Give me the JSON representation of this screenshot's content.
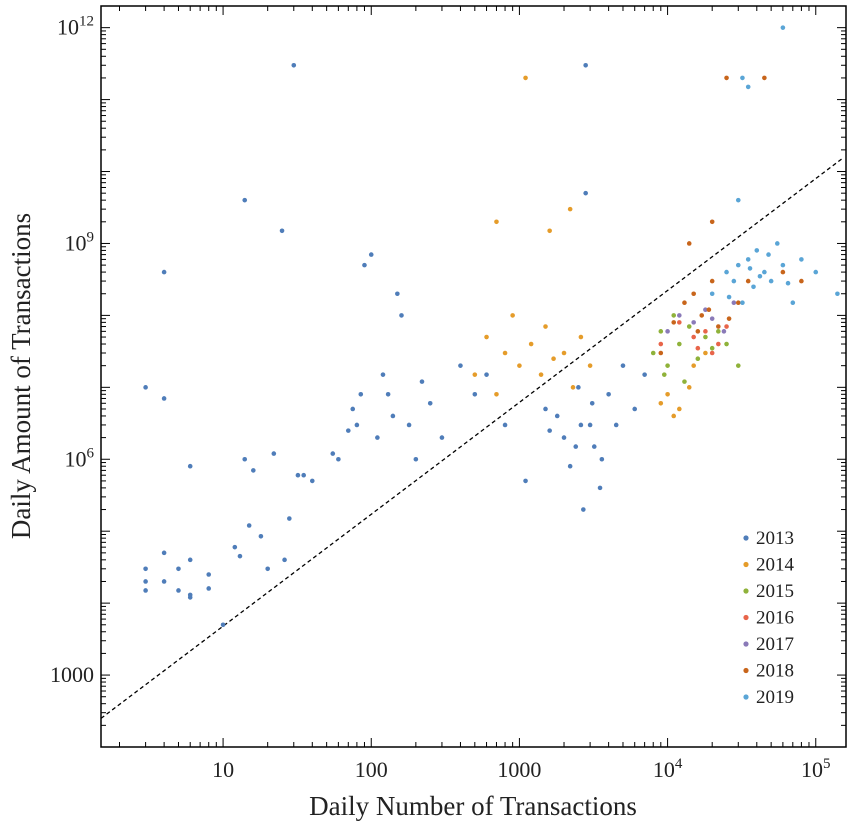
{
  "chart_data": {
    "type": "scatter",
    "xlabel": "Daily Number of Transactions",
    "ylabel": "Daily Amount of Transactions",
    "x_scale": "log",
    "y_scale": "log",
    "xlim": [
      1.5,
      160000
    ],
    "ylim": [
      100,
      2000000000000
    ],
    "x_ticks": [
      {
        "value": 10,
        "label": "10"
      },
      {
        "value": 100,
        "label": "100"
      },
      {
        "value": 1000,
        "label": "1000"
      },
      {
        "value": 10000,
        "label": "10",
        "sup": "4"
      },
      {
        "value": 100000,
        "label": "10",
        "sup": "5"
      }
    ],
    "y_ticks": [
      {
        "value": 1000,
        "label": "1000"
      },
      {
        "value": 1000000,
        "label": "10",
        "sup": "6"
      },
      {
        "value": 1000000000,
        "label": "10",
        "sup": "9"
      },
      {
        "value": 1000000000000,
        "label": "10",
        "sup": "12"
      }
    ],
    "grid": false,
    "legend_position": "bottom-right",
    "reference_line": {
      "style": "dashed",
      "color": "#000000",
      "points": [
        [
          1.5,
          250
        ],
        [
          150000,
          15000000000
        ]
      ]
    },
    "series": [
      {
        "name": "2013",
        "color": "#4f7db9",
        "points": [
          [
            3,
            10000000
          ],
          [
            3,
            30000
          ],
          [
            3,
            20000
          ],
          [
            3,
            15000
          ],
          [
            4,
            7000000
          ],
          [
            4,
            50000
          ],
          [
            4,
            20000
          ],
          [
            4,
            400000000
          ],
          [
            5,
            30000
          ],
          [
            5,
            15000
          ],
          [
            6,
            800000
          ],
          [
            6,
            40000
          ],
          [
            6,
            12000
          ],
          [
            6,
            13000
          ],
          [
            8,
            25000
          ],
          [
            8,
            16000
          ],
          [
            10,
            5000
          ],
          [
            12,
            60000
          ],
          [
            13,
            45000
          ],
          [
            14,
            1000000
          ],
          [
            14,
            4000000000
          ],
          [
            15,
            120000
          ],
          [
            16,
            700000
          ],
          [
            18,
            85000
          ],
          [
            20,
            30000
          ],
          [
            22,
            1200000
          ],
          [
            25,
            1500000000
          ],
          [
            26,
            40000
          ],
          [
            28,
            150000
          ],
          [
            30,
            300000000000
          ],
          [
            32,
            600000
          ],
          [
            35,
            600000
          ],
          [
            40,
            500000
          ],
          [
            55,
            1200000
          ],
          [
            60,
            1000000
          ],
          [
            70,
            2500000
          ],
          [
            75,
            5000000
          ],
          [
            80,
            3000000
          ],
          [
            85,
            8000000
          ],
          [
            90,
            500000000
          ],
          [
            100,
            700000000
          ],
          [
            110,
            2000000
          ],
          [
            120,
            15000000
          ],
          [
            130,
            8000000
          ],
          [
            140,
            4000000
          ],
          [
            150,
            200000000
          ],
          [
            160,
            100000000
          ],
          [
            180,
            3000000
          ],
          [
            200,
            1000000
          ],
          [
            220,
            12000000
          ],
          [
            250,
            6000000
          ],
          [
            300,
            2000000
          ],
          [
            400,
            20000000
          ],
          [
            500,
            8000000
          ],
          [
            600,
            15000000
          ],
          [
            800,
            3000000
          ],
          [
            1100,
            500000
          ],
          [
            1500,
            5000000
          ],
          [
            2000,
            2000000
          ],
          [
            2200,
            800000
          ],
          [
            2500,
            10000000
          ],
          [
            2700,
            200000
          ],
          [
            3000,
            3000000
          ],
          [
            3200,
            1500000
          ],
          [
            3500,
            400000
          ],
          [
            4000,
            8000000
          ],
          [
            5000,
            20000000
          ],
          [
            6000,
            5000000
          ],
          [
            2800,
            300000000000
          ],
          [
            2800,
            5000000000
          ],
          [
            2600,
            3000000
          ],
          [
            3100,
            6000000
          ],
          [
            2400,
            1500000
          ],
          [
            3600,
            1000000
          ],
          [
            1800,
            4000000
          ],
          [
            1600,
            2500000
          ],
          [
            4500,
            3000000
          ],
          [
            7000,
            15000000
          ]
        ]
      },
      {
        "name": "2014",
        "color": "#e59c2a",
        "points": [
          [
            500,
            15000000
          ],
          [
            600,
            50000000
          ],
          [
            700,
            8000000
          ],
          [
            800,
            30000000
          ],
          [
            900,
            100000000
          ],
          [
            1000,
            20000000
          ],
          [
            1100,
            200000000000
          ],
          [
            1200,
            40000000
          ],
          [
            1400,
            15000000
          ],
          [
            1500,
            70000000
          ],
          [
            1700,
            25000000
          ],
          [
            2000,
            30000000
          ],
          [
            2300,
            10000000
          ],
          [
            2600,
            50000000
          ],
          [
            3000,
            20000000
          ],
          [
            700,
            2000000000
          ],
          [
            1600,
            1500000000
          ],
          [
            2200,
            3000000000
          ],
          [
            10000,
            8000000
          ],
          [
            12000,
            5000000
          ],
          [
            15000,
            20000000
          ],
          [
            18000,
            30000000
          ],
          [
            9000,
            6000000
          ],
          [
            11000,
            4000000
          ],
          [
            14000,
            10000000
          ]
        ]
      },
      {
        "name": "2015",
        "color": "#8fb23a",
        "points": [
          [
            8000,
            30000000
          ],
          [
            9000,
            60000000
          ],
          [
            10000,
            20000000
          ],
          [
            11000,
            100000000
          ],
          [
            12000,
            40000000
          ],
          [
            14000,
            70000000
          ],
          [
            16000,
            25000000
          ],
          [
            18000,
            50000000
          ],
          [
            20000,
            35000000
          ],
          [
            25000,
            40000000
          ],
          [
            30000,
            20000000
          ],
          [
            9500,
            15000000
          ],
          [
            13000,
            12000000
          ],
          [
            22000,
            60000000
          ]
        ]
      },
      {
        "name": "2016",
        "color": "#e8654a",
        "points": [
          [
            9000,
            40000000
          ],
          [
            12000,
            80000000
          ],
          [
            15000,
            50000000
          ],
          [
            18000,
            60000000
          ],
          [
            20000,
            30000000
          ],
          [
            22000,
            40000000
          ],
          [
            25000,
            70000000
          ],
          [
            16000,
            35000000
          ]
        ]
      },
      {
        "name": "2017",
        "color": "#8a7ab8",
        "points": [
          [
            10000,
            60000000
          ],
          [
            12000,
            100000000
          ],
          [
            15000,
            80000000
          ],
          [
            18000,
            120000000
          ],
          [
            20000,
            90000000
          ],
          [
            24000,
            60000000
          ],
          [
            28000,
            150000000
          ]
        ]
      },
      {
        "name": "2018",
        "color": "#c8651b",
        "points": [
          [
            9000,
            30000000
          ],
          [
            11000,
            80000000
          ],
          [
            13000,
            150000000
          ],
          [
            15000,
            200000000
          ],
          [
            17000,
            100000000
          ],
          [
            20000,
            300000000
          ],
          [
            22000,
            70000000
          ],
          [
            25000,
            200000000000
          ],
          [
            30000,
            150000000
          ],
          [
            35000,
            300000000
          ],
          [
            45000,
            200000000000
          ],
          [
            14000,
            1000000000
          ],
          [
            20000,
            2000000000
          ],
          [
            60000,
            400000000
          ],
          [
            80000,
            300000000
          ],
          [
            16000,
            60000000
          ],
          [
            19000,
            120000000
          ],
          [
            26000,
            90000000
          ]
        ]
      },
      {
        "name": "2019",
        "color": "#5aa5d6",
        "points": [
          [
            20000,
            200000000
          ],
          [
            25000,
            400000000
          ],
          [
            28000,
            300000000
          ],
          [
            30000,
            500000000
          ],
          [
            32000,
            150000000
          ],
          [
            35000,
            600000000
          ],
          [
            38000,
            250000000
          ],
          [
            40000,
            800000000
          ],
          [
            45000,
            400000000
          ],
          [
            50000,
            300000000
          ],
          [
            55000,
            1000000000
          ],
          [
            60000,
            500000000
          ],
          [
            70000,
            150000000
          ],
          [
            80000,
            600000000
          ],
          [
            100000,
            400000000
          ],
          [
            140000,
            200000000
          ],
          [
            60000,
            1000000000000
          ],
          [
            32000,
            200000000000
          ],
          [
            35000,
            150000000000
          ],
          [
            30000,
            4000000000
          ],
          [
            42000,
            350000000
          ],
          [
            48000,
            700000000
          ],
          [
            26000,
            180000000
          ],
          [
            36000,
            450000000
          ],
          [
            65000,
            280000000
          ]
        ]
      }
    ]
  }
}
